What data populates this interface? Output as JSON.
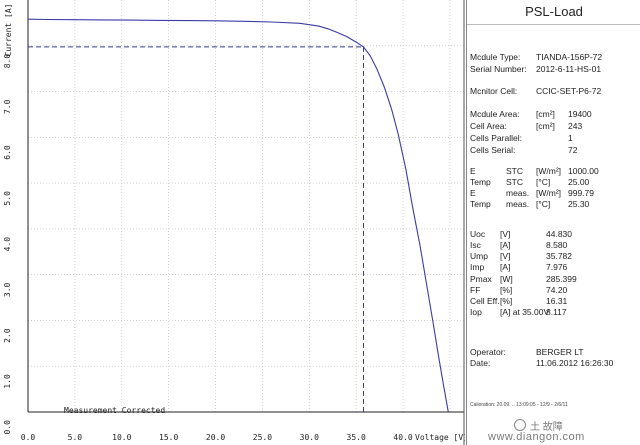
{
  "chart_data": {
    "type": "line",
    "ylabel": "Current [A]",
    "xlabel": "Voltage [V]",
    "xlim": [
      0,
      46.5
    ],
    "ylim": [
      0,
      9.0
    ],
    "x_ticks": [
      "0.0",
      "5.0",
      "10.0",
      "15.0",
      "20.0",
      "25.0",
      "30.0",
      "35.0",
      "40.0"
    ],
    "y_ticks": [
      "8.0",
      "7.0",
      "6.0",
      "5.0",
      "4.0",
      "3.0",
      "2.0",
      "1.0",
      "0.0"
    ],
    "annotation": "Measurement Corrected",
    "mpp": {
      "voltage": 35.782,
      "current": 7.976
    },
    "series": [
      {
        "x": [
          0,
          2,
          5,
          8,
          11,
          14,
          17,
          20,
          23,
          26,
          29,
          31,
          32,
          33,
          34,
          35,
          35.78,
          36.5,
          37.2,
          38,
          38.8,
          39.5,
          40.3,
          41,
          41.8,
          42.5,
          43.2,
          43.8,
          44.3,
          44.83
        ],
        "y": [
          8.58,
          8.575,
          8.57,
          8.565,
          8.56,
          8.555,
          8.55,
          8.545,
          8.535,
          8.52,
          8.49,
          8.43,
          8.37,
          8.29,
          8.2,
          8.08,
          7.976,
          7.78,
          7.5,
          7.1,
          6.6,
          6.05,
          5.3,
          4.5,
          3.65,
          2.8,
          1.95,
          1.2,
          0.6,
          0.0
        ]
      }
    ]
  },
  "panel": {
    "title": "PSL-Load",
    "module_type_label": "Mcdule Type:",
    "module_type": "TIANDA-156P-72",
    "serial_label": "Serial Number:",
    "serial": "2012-6-11-HS-01",
    "monitor_label": "Mcnitor Cell:",
    "monitor": "CCIC-SET-P6-72",
    "module_area_label": "Mcdule Area:",
    "module_area_unit": "[cm²]",
    "module_area": "19400",
    "cell_area_label": "Cell Area:",
    "cell_area_unit": "[cm²]",
    "cell_area": "243",
    "cells_parallel_label": "Cells Parallel:",
    "cells_parallel": "1",
    "cells_serial_label": "Cells Serial:",
    "cells_serial": "72",
    "e_stc": {
      "label": "E",
      "kind": "STC",
      "unit": "[W/m²]",
      "value": "1000.00"
    },
    "temp_stc": {
      "label": "Temp",
      "kind": "STC",
      "unit": "[°C]",
      "value": "25.00"
    },
    "e_meas": {
      "label": "E",
      "kind": "meas.",
      "unit": "[W/m²]",
      "value": "999.79"
    },
    "temp_meas": {
      "label": "Temp",
      "kind": "meas.",
      "unit": "[°C]",
      "value": "25.30"
    },
    "uoc": {
      "label": "Uoc",
      "unit": "[V]",
      "value": "44.830"
    },
    "isc": {
      "label": "Isc",
      "unit": "[A]",
      "value": "8.580"
    },
    "ump": {
      "label": "Ump",
      "unit": "[V]",
      "value": "35.782"
    },
    "imp": {
      "label": "Imp",
      "unit": "[A]",
      "value": "7.976"
    },
    "pmax": {
      "label": "Pmax",
      "unit": "[W]",
      "value": "285.399"
    },
    "ff": {
      "label": "FF",
      "unit": "[%]",
      "value": "74.20"
    },
    "cell_eff": {
      "label": "Cell Eff.",
      "unit": "[%]",
      "value": "16.31"
    },
    "iop": {
      "label": "Iop",
      "unit": "[A] at 35.00V",
      "value": "8.117"
    },
    "operator_label": "Operator:",
    "operator": "BERGER LT",
    "date_label": "Date:",
    "date": "11.06.2012 16:26:30",
    "calibration": "Calioration: 20.09.  ..  13:09:05 - 12/9 - 2/6/11"
  },
  "watermark": {
    "brand": "土 故障",
    "site": "www.diangon.com"
  }
}
